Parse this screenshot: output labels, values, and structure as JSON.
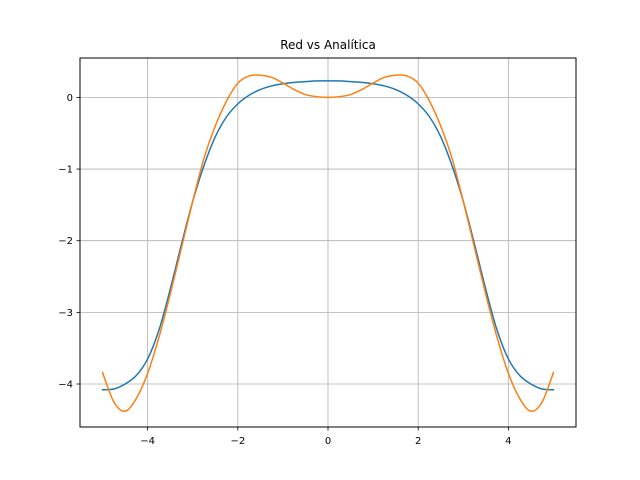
{
  "chart_data": {
    "type": "line",
    "title": "Red vs Analítica",
    "xlabel": "",
    "ylabel": "",
    "xlim": [
      -5.5,
      5.5
    ],
    "ylim": [
      -4.6,
      0.55
    ],
    "grid": true,
    "legend": "none",
    "x_ticks": [
      -4,
      -2,
      0,
      2,
      4
    ],
    "x_tick_labels": [
      "−4",
      "−2",
      "0",
      "2",
      "4"
    ],
    "y_ticks": [
      0,
      -1,
      -2,
      -3,
      -4
    ],
    "y_tick_labels": [
      "0",
      "−1",
      "−2",
      "−3",
      "−4"
    ],
    "series": [
      {
        "color": "#1f77b4",
        "x": [
          -5.0,
          -4.75,
          -4.5,
          -4.25,
          -4.0,
          -3.75,
          -3.5,
          -3.25,
          -3.0,
          -2.75,
          -2.5,
          -2.25,
          -2.0,
          -1.75,
          -1.5,
          -1.25,
          -1.0,
          -0.75,
          -0.5,
          -0.25,
          0.0,
          0.25,
          0.5,
          0.75,
          1.0,
          1.25,
          1.5,
          1.75,
          2.0,
          2.25,
          2.5,
          2.75,
          3.0,
          3.25,
          3.5,
          3.75,
          4.0,
          4.25,
          4.5,
          4.75,
          5.0
        ],
        "y": [
          -4.08,
          -4.07,
          -4.0,
          -3.88,
          -3.65,
          -3.25,
          -2.68,
          -2.05,
          -1.45,
          -0.95,
          -0.55,
          -0.27,
          -0.09,
          0.03,
          0.11,
          0.16,
          0.19,
          0.21,
          0.22,
          0.23,
          0.23,
          0.23,
          0.22,
          0.21,
          0.19,
          0.16,
          0.11,
          0.03,
          -0.09,
          -0.27,
          -0.55,
          -0.95,
          -1.45,
          -2.05,
          -2.68,
          -3.25,
          -3.65,
          -3.88,
          -4.0,
          -4.07,
          -4.08
        ]
      },
      {
        "color": "#ff7f0e",
        "x": [
          -5.0,
          -4.75,
          -4.5,
          -4.25,
          -4.0,
          -3.75,
          -3.5,
          -3.25,
          -3.0,
          -2.75,
          -2.5,
          -2.25,
          -2.0,
          -1.75,
          -1.5,
          -1.25,
          -1.0,
          -0.75,
          -0.5,
          -0.25,
          0.0,
          0.25,
          0.5,
          0.75,
          1.0,
          1.25,
          1.5,
          1.75,
          2.0,
          2.25,
          2.5,
          2.75,
          3.0,
          3.25,
          3.5,
          3.75,
          4.0,
          4.25,
          4.5,
          4.75,
          5.0
        ],
        "y": [
          -3.84,
          -4.25,
          -4.38,
          -4.2,
          -3.85,
          -3.35,
          -2.75,
          -2.1,
          -1.45,
          -0.85,
          -0.4,
          -0.05,
          0.2,
          0.3,
          0.31,
          0.28,
          0.2,
          0.11,
          0.04,
          0.01,
          0.0,
          0.01,
          0.04,
          0.11,
          0.2,
          0.28,
          0.31,
          0.3,
          0.2,
          -0.05,
          -0.4,
          -0.85,
          -1.45,
          -2.1,
          -2.75,
          -3.35,
          -3.85,
          -4.2,
          -4.38,
          -4.25,
          -3.84
        ]
      }
    ]
  }
}
